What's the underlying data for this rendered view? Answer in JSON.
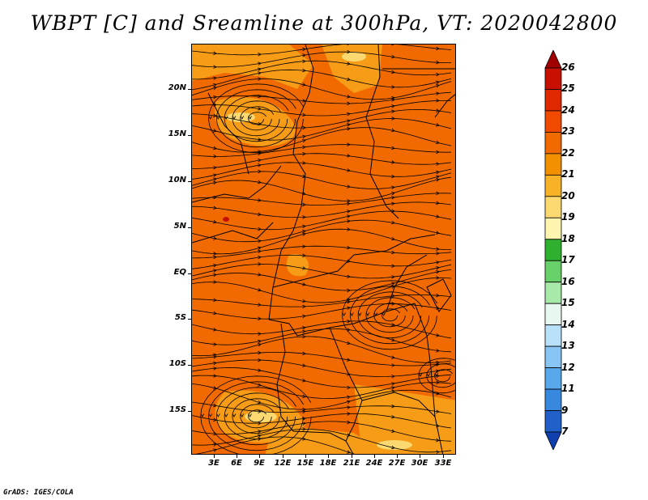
{
  "title": "WBPT [C] and Sreamline at 300hPa, VT: 2020042800",
  "credit": "GrADS: IGES/COLA",
  "map": {
    "variable": "wet-bulb potential temperature",
    "level": "300hPa",
    "lat_labels": [
      "20N",
      "15N",
      "10N",
      "5N",
      "EQ",
      "5S",
      "10S",
      "15S"
    ],
    "lon_labels": [
      "3E",
      "6E",
      "9E",
      "12E",
      "15E",
      "18E",
      "21E",
      "24E",
      "27E",
      "30E",
      "33E"
    ],
    "background_color": "#f06a00",
    "warm_patch_color": "#f7a21a"
  },
  "colorbar": {
    "labels": [
      "26",
      "25",
      "24",
      "23",
      "22",
      "21",
      "20",
      "19",
      "18",
      "17",
      "16",
      "15",
      "14",
      "13",
      "12",
      "11",
      "9",
      "7"
    ],
    "colors": [
      "#a00000",
      "#c81000",
      "#e02800",
      "#f04a00",
      "#f06a00",
      "#f39000",
      "#f7b228",
      "#fbd870",
      "#fff5b0",
      "#2fb02f",
      "#68d068",
      "#a8e8a8",
      "#e8f8f0",
      "#b8e0f8",
      "#88c4f4",
      "#58a8ec",
      "#3888e0",
      "#2060c8",
      "#1040b0"
    ]
  }
}
